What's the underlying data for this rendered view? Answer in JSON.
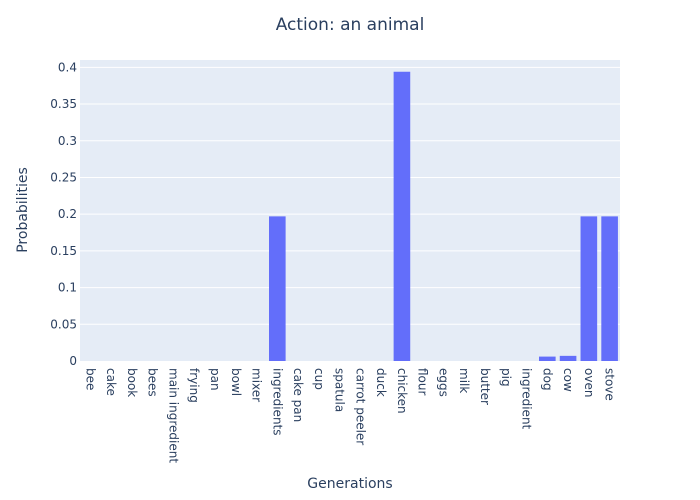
{
  "chart_data": {
    "type": "bar",
    "title": "Action: an animal",
    "xlabel": "Generations",
    "ylabel": "Probabilities",
    "ylim": [
      0,
      0.41
    ],
    "yticks": [
      0,
      0.05,
      0.1,
      0.15,
      0.2,
      0.25,
      0.3,
      0.35,
      0.4
    ],
    "ytick_labels": [
      "0",
      "0.05",
      "0.1",
      "0.15",
      "0.2",
      "0.25",
      "0.3",
      "0.35",
      "0.4"
    ],
    "categories": [
      "bee",
      "cake",
      "book",
      "bees",
      "main ingredient",
      "frying",
      "pan",
      "bowl",
      "mixer",
      "ingredients",
      "cake pan",
      "cup",
      "spatula",
      "carrot peeler",
      "duck",
      "chicken",
      "flour",
      "eggs",
      "milk",
      "butter",
      "pig",
      "ingredient",
      "dog",
      "cow",
      "oven",
      "stove"
    ],
    "values": [
      0,
      0,
      0,
      0,
      0,
      0,
      0,
      0,
      0,
      0.197,
      0,
      0,
      0,
      0,
      0,
      0.394,
      0,
      0,
      0,
      0,
      0,
      0,
      0.006,
      0.007,
      0.197,
      0.197
    ],
    "bar_color": "#636efa",
    "plot_bg": "#e5ecf6",
    "grid": true
  }
}
